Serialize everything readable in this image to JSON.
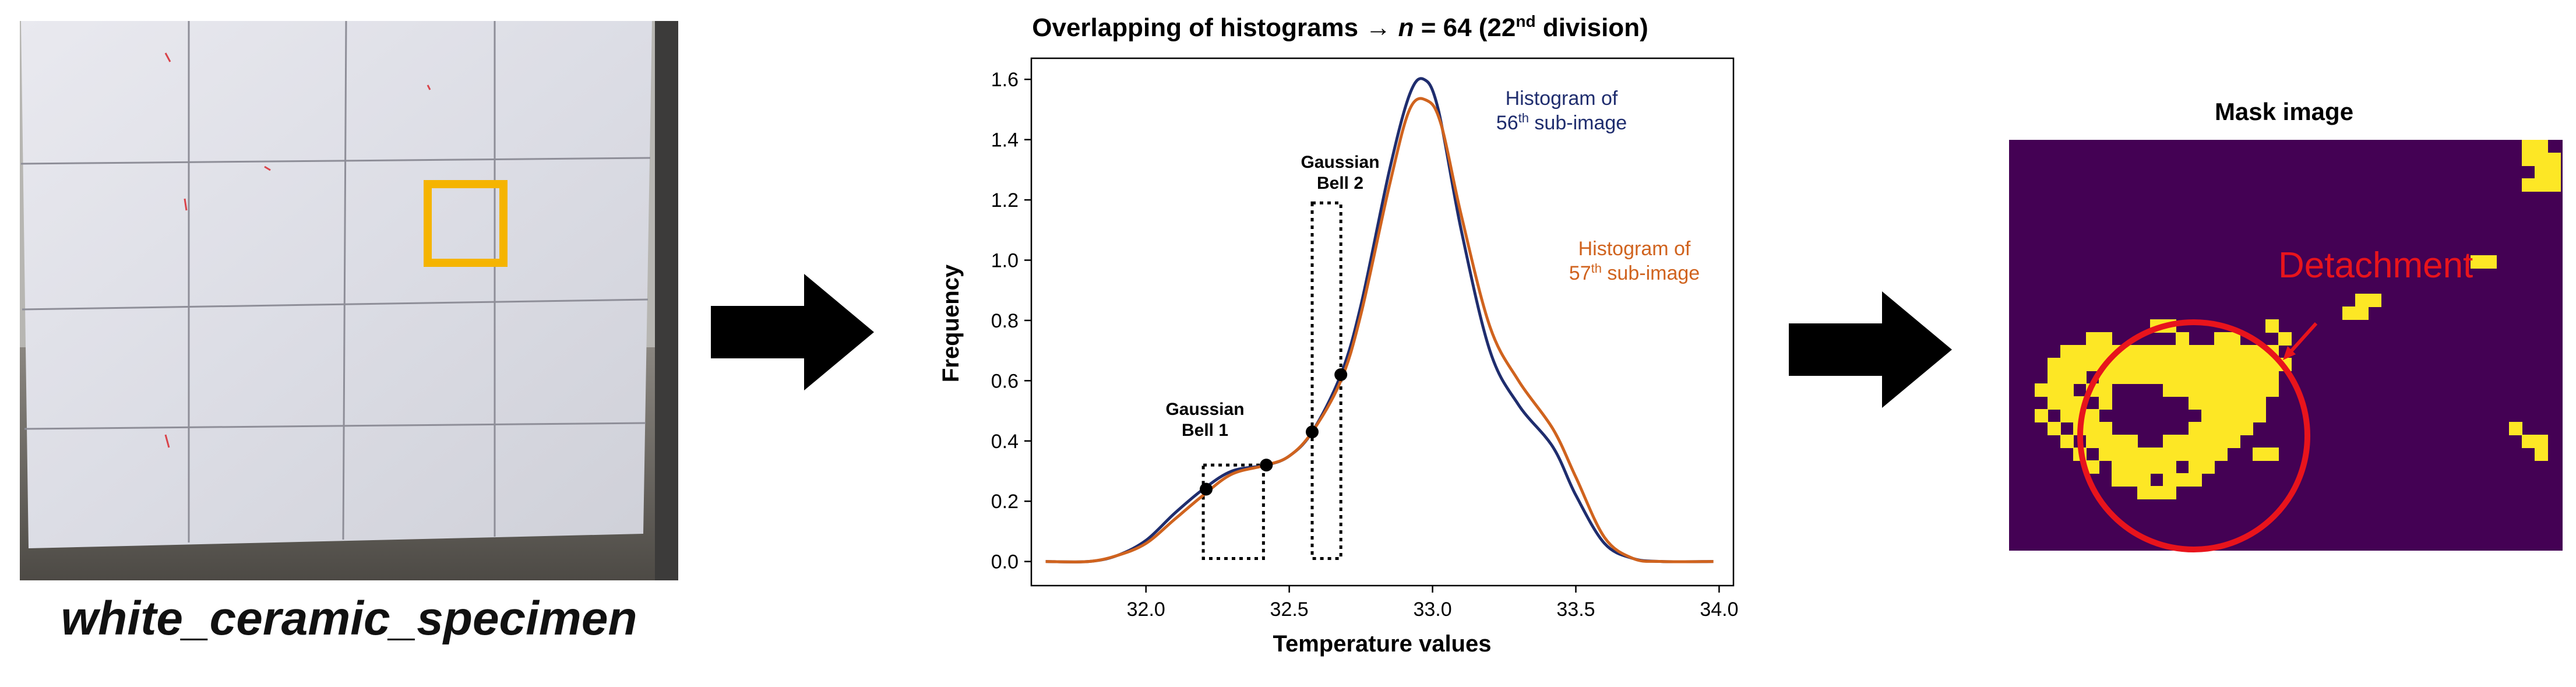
{
  "specimen": {
    "caption": "white_ceramic_specimen"
  },
  "histogram": {
    "title_prefix": "Overlapping of histograms → ",
    "title_n": "n",
    "title_mid": " = 64 (22",
    "title_sup": "nd",
    "title_suffix": " division)",
    "xlabel": "Temperature values",
    "ylabel": "Frequency",
    "annotations": {
      "bell1_line1": "Gaussian",
      "bell1_line2": "Bell 1",
      "bell2_line1": "Gaussian",
      "bell2_line2": "Bell 2",
      "hist56_line1": "Histogram of",
      "hist56_num": "56",
      "hist56_sup": "th",
      "hist56_rest": " sub-image",
      "hist57_line1": "Histogram of",
      "hist57_num": "57",
      "hist57_sup": "th",
      "hist57_rest": " sub-image"
    }
  },
  "mask": {
    "title": "Mask image",
    "detachment_label": "Detachment"
  },
  "colors": {
    "series56": "#1f2d6e",
    "series57": "#d0631e",
    "highlight": "#f5b400",
    "annotation": "#e8141c",
    "mask_background": "#440154",
    "mask_foreground": "#fde725"
  },
  "chart_data": {
    "type": "line",
    "title": "Overlapping of histograms → n = 64 (22nd division)",
    "xlabel": "Temperature values",
    "ylabel": "Frequency",
    "xlim": [
      31.6,
      34.05
    ],
    "ylim": [
      -0.08,
      1.67
    ],
    "x_ticks": [
      "32.0",
      "32.5",
      "33.0",
      "33.5",
      "34.0"
    ],
    "y_ticks": [
      "0.0",
      "0.2",
      "0.4",
      "0.6",
      "0.8",
      "1.0",
      "1.2",
      "1.4",
      "1.6"
    ],
    "series": [
      {
        "name": "Histogram of 56th sub-image",
        "x": [
          31.65,
          31.8,
          31.9,
          32.0,
          32.1,
          32.2,
          32.3,
          32.42,
          32.5,
          32.58,
          32.68,
          32.75,
          32.85,
          32.92,
          32.97,
          33.02,
          33.1,
          33.2,
          33.3,
          33.42,
          33.5,
          33.6,
          33.7,
          33.8,
          33.98
        ],
        "y": [
          0.0,
          0.0,
          0.02,
          0.07,
          0.16,
          0.24,
          0.3,
          0.32,
          0.35,
          0.43,
          0.62,
          0.85,
          1.3,
          1.55,
          1.6,
          1.5,
          1.1,
          0.7,
          0.52,
          0.38,
          0.22,
          0.06,
          0.01,
          0.0,
          0.0
        ]
      },
      {
        "name": "Histogram of 57th sub-image",
        "x": [
          31.65,
          31.8,
          31.9,
          32.0,
          32.1,
          32.2,
          32.3,
          32.42,
          32.5,
          32.58,
          32.68,
          32.75,
          32.85,
          32.92,
          32.98,
          33.03,
          33.1,
          33.2,
          33.3,
          33.42,
          33.5,
          33.6,
          33.7,
          33.8,
          33.98
        ],
        "y": [
          0.0,
          0.0,
          0.02,
          0.06,
          0.14,
          0.22,
          0.29,
          0.32,
          0.35,
          0.43,
          0.6,
          0.82,
          1.25,
          1.5,
          1.53,
          1.45,
          1.15,
          0.78,
          0.6,
          0.44,
          0.28,
          0.08,
          0.01,
          0.0,
          0.0
        ]
      }
    ],
    "markers": [
      {
        "x": 32.21,
        "y": 0.24
      },
      {
        "x": 32.42,
        "y": 0.32
      },
      {
        "x": 32.58,
        "y": 0.43
      },
      {
        "x": 32.68,
        "y": 0.62
      }
    ],
    "dotted_boxes": [
      {
        "label": "Gaussian Bell 1",
        "x0": 32.2,
        "x1": 32.41,
        "y0": 0.01,
        "y1": 0.32
      },
      {
        "label": "Gaussian Bell 2",
        "x0": 32.58,
        "x1": 32.68,
        "y0": 0.01,
        "y1": 1.19
      }
    ]
  }
}
